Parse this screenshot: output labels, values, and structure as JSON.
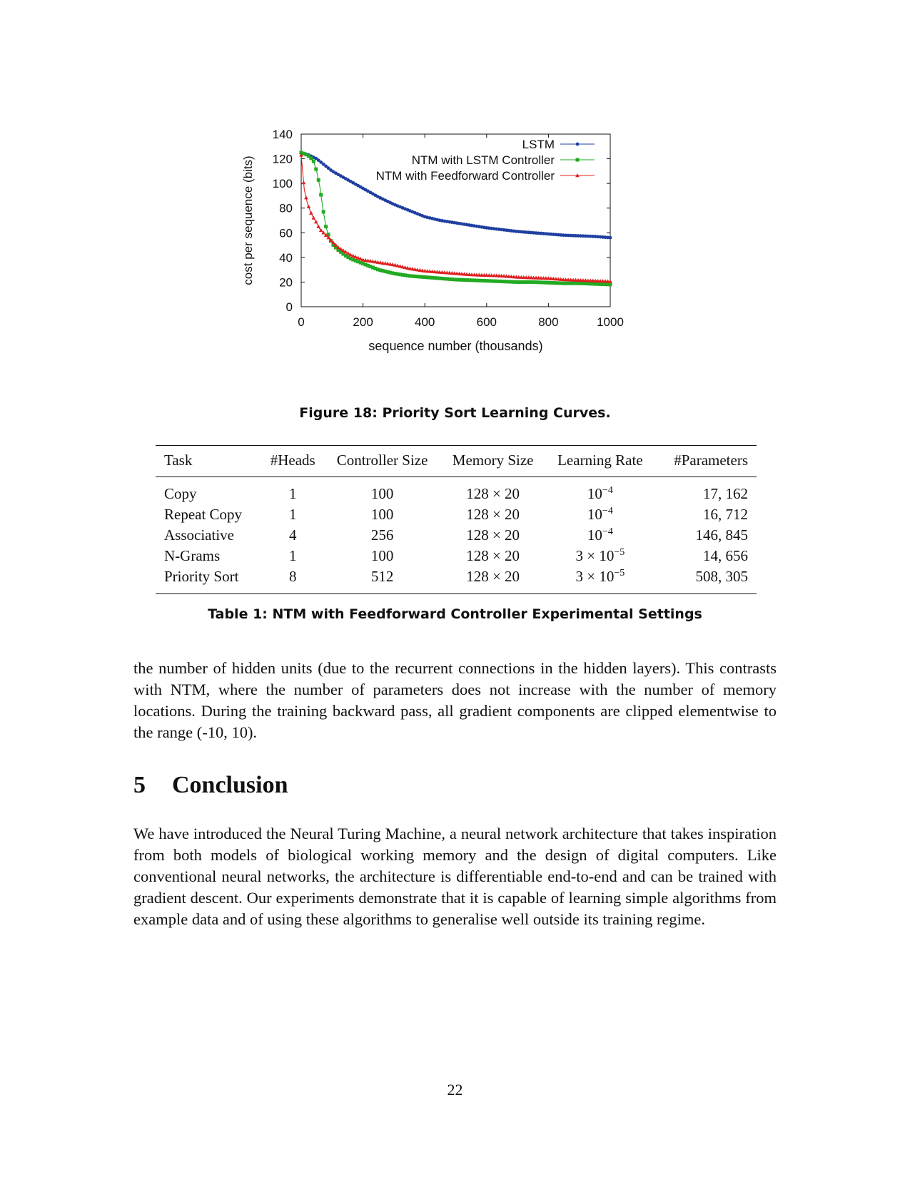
{
  "chart_data": {
    "type": "line",
    "xlabel": "sequence number (thousands)",
    "ylabel": "cost per sequence (bits)",
    "xlim": [
      0,
      1000
    ],
    "ylim": [
      0,
      140
    ],
    "xticks": [
      0,
      200,
      400,
      600,
      800,
      1000
    ],
    "yticks": [
      0,
      20,
      40,
      60,
      80,
      100,
      120,
      140
    ],
    "legend_position": "top-right",
    "grid": false,
    "series": [
      {
        "name": "LSTM",
        "color": "#1f3fa0",
        "marker": "circle",
        "x": [
          0,
          25,
          50,
          75,
          100,
          150,
          200,
          250,
          300,
          350,
          400,
          450,
          500,
          550,
          600,
          650,
          700,
          750,
          800,
          850,
          900,
          950,
          1000
        ],
        "y": [
          125,
          123,
          120,
          115,
          110,
          103,
          96,
          89,
          83,
          78,
          73,
          70,
          68,
          66,
          64,
          62.5,
          61,
          60,
          59,
          58,
          57.5,
          57,
          56
        ]
      },
      {
        "name": "NTM with LSTM Controller",
        "color": "#22aa22",
        "marker": "square",
        "x": [
          0,
          10,
          20,
          30,
          40,
          50,
          60,
          70,
          80,
          90,
          100,
          120,
          140,
          160,
          180,
          200,
          250,
          300,
          350,
          400,
          450,
          500,
          550,
          600,
          650,
          700,
          750,
          800,
          850,
          900,
          950,
          1000
        ],
        "y": [
          125,
          124,
          123,
          121,
          118,
          110,
          98,
          80,
          65,
          57,
          51,
          46,
          42,
          39,
          37,
          35,
          30,
          27,
          25,
          24,
          23,
          22,
          21.5,
          21,
          20.5,
          20,
          20,
          19.5,
          19,
          19,
          18.5,
          18
        ]
      },
      {
        "name": "NTM with Feedforward Controller",
        "color": "#e02020",
        "marker": "triangle",
        "x": [
          0,
          10,
          20,
          30,
          40,
          50,
          60,
          80,
          100,
          120,
          140,
          160,
          180,
          200,
          250,
          300,
          350,
          400,
          450,
          500,
          550,
          600,
          650,
          700,
          750,
          800,
          850,
          900,
          950,
          1000
        ],
        "y": [
          123,
          95,
          84,
          77,
          72,
          68,
          63,
          58,
          53,
          48,
          45,
          42,
          40,
          38,
          36,
          34,
          31,
          29,
          28,
          27,
          26,
          25.5,
          25,
          24,
          23.5,
          23,
          22,
          21.5,
          21,
          20.5
        ]
      }
    ]
  },
  "figure_caption": "Figure 18: Priority Sort Learning Curves.",
  "table": {
    "headers": [
      "Task",
      "#Heads",
      "Controller Size",
      "Memory Size",
      "Learning Rate",
      "#Parameters"
    ],
    "rows": [
      {
        "task": "Copy",
        "heads": "1",
        "controller_size": "100",
        "memory_size": "128 × 20",
        "lr_base": "10",
        "lr_exp": "−4",
        "params": "17, 162"
      },
      {
        "task": "Repeat Copy",
        "heads": "1",
        "controller_size": "100",
        "memory_size": "128 × 20",
        "lr_base": "10",
        "lr_exp": "−4",
        "params": "16, 712"
      },
      {
        "task": "Associative",
        "heads": "4",
        "controller_size": "256",
        "memory_size": "128 × 20",
        "lr_base": "10",
        "lr_exp": "−4",
        "params": "146, 845"
      },
      {
        "task": "N-Grams",
        "heads": "1",
        "controller_size": "100",
        "memory_size": "128 × 20",
        "lr_base": "3 × 10",
        "lr_exp": "−5",
        "params": "14, 656"
      },
      {
        "task": "Priority Sort",
        "heads": "8",
        "controller_size": "512",
        "memory_size": "128 × 20",
        "lr_base": "3 × 10",
        "lr_exp": "−5",
        "params": "508, 305"
      }
    ]
  },
  "table_caption": "Table 1: NTM with Feedforward Controller Experimental Settings",
  "paragraph1": "the number of hidden units (due to the recurrent connections in the hidden layers). This contrasts with NTM, where the number of parameters does not increase with the number of memory locations. During the training backward pass, all gradient components are clipped elementwise to the range (-10, 10).",
  "section": {
    "number": "5",
    "title": "Conclusion"
  },
  "paragraph2": "We have introduced the Neural Turing Machine, a neural network architecture that takes inspiration from both models of biological working memory and the design of digital computers. Like conventional neural networks, the architecture is differentiable end-to-end and can be trained with gradient descent. Our experiments demonstrate that it is capable of learning simple algorithms from example data and of using these algorithms to generalise well outside its training regime.",
  "page_number": "22"
}
